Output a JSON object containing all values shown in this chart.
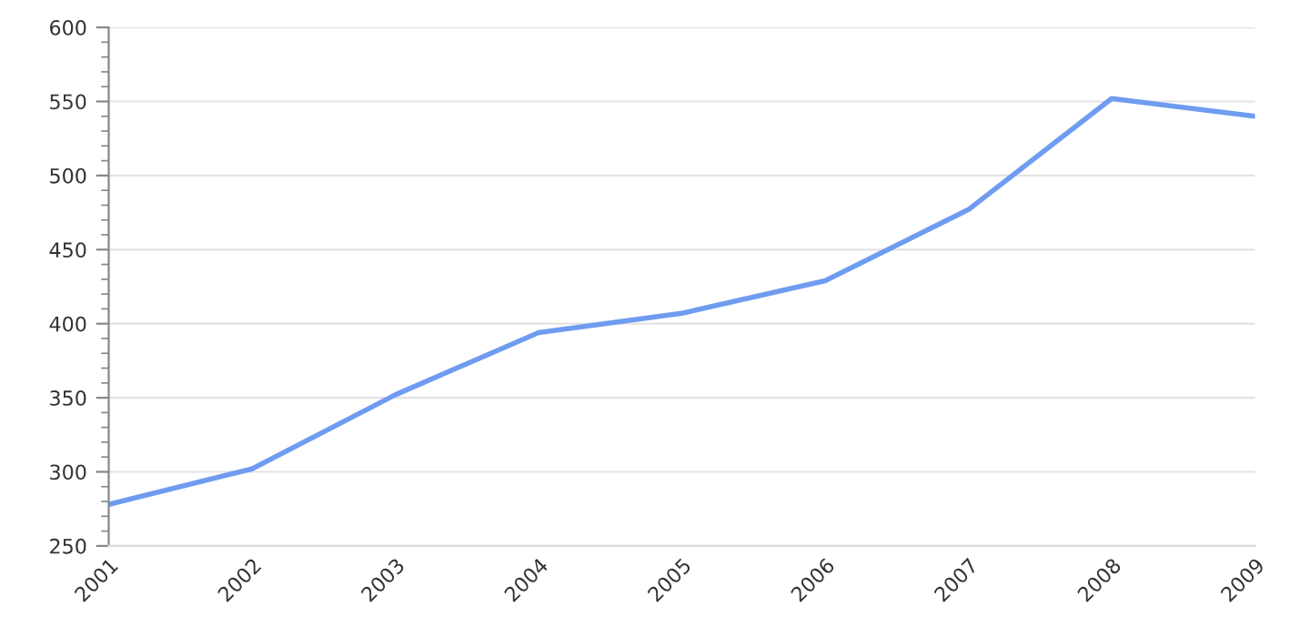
{
  "chart_data": {
    "type": "line",
    "categories": [
      "2001",
      "2002",
      "2003",
      "2004",
      "2005",
      "2006",
      "2007",
      "2008",
      "2009"
    ],
    "series": [
      {
        "color": "#6f9cf0",
        "values": [
          278,
          302,
          352,
          394,
          407,
          429,
          477,
          552,
          540
        ]
      }
    ],
    "ylim": [
      250,
      600
    ],
    "yticks": [
      250,
      300,
      350,
      400,
      450,
      500,
      550,
      600
    ],
    "grid": "y",
    "legend": false,
    "marker": "none",
    "line_style": "solid"
  }
}
